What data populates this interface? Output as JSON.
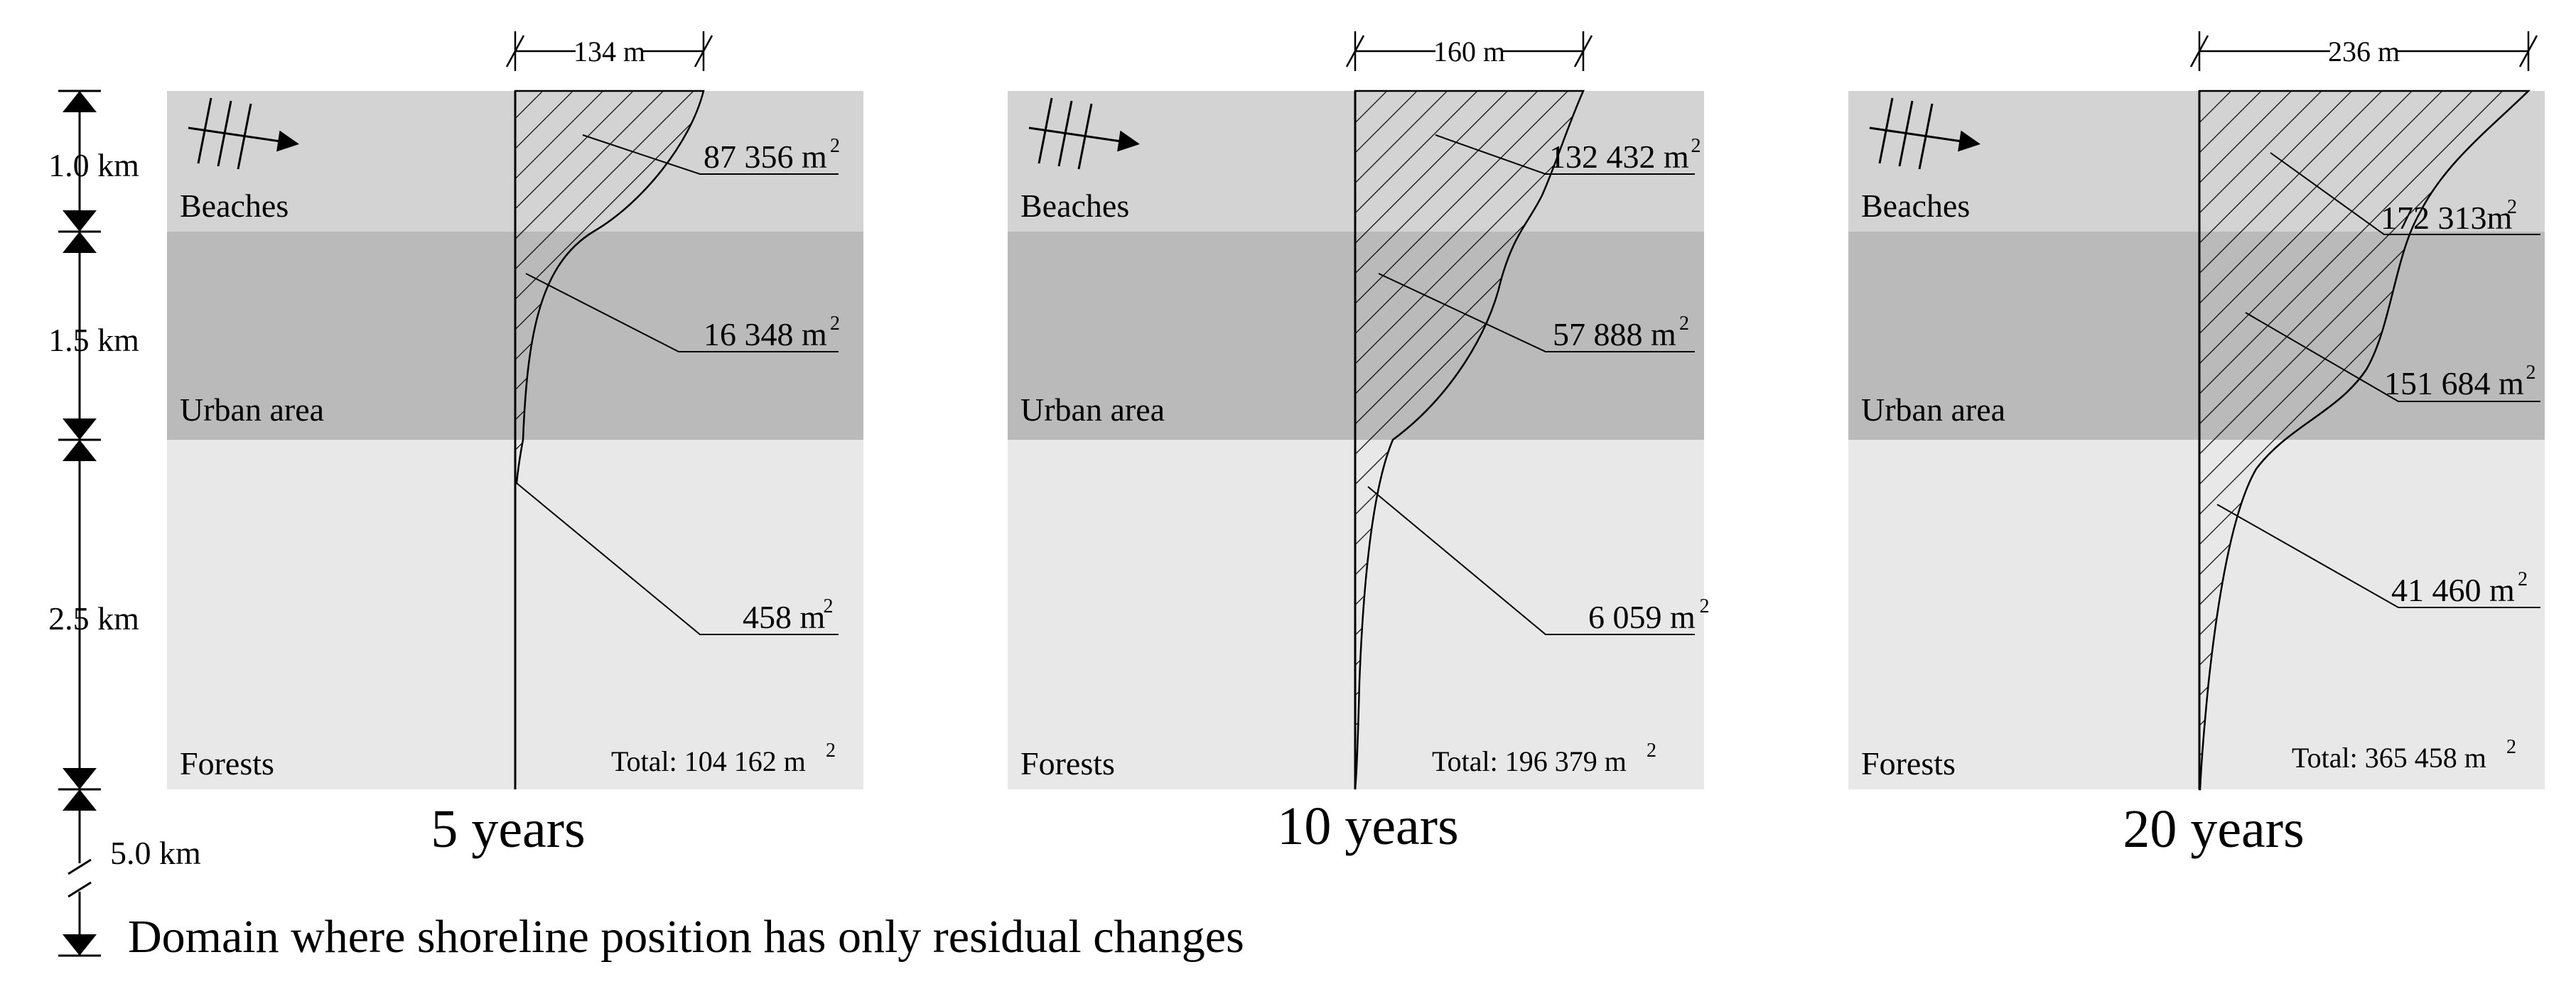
{
  "colors": {
    "beaches": "#d3d3d3",
    "urban": "#bababa",
    "forests": "#e8e8e8",
    "ink": "#000000"
  },
  "axis": {
    "segments": [
      "1.0 km",
      "1.5 km",
      "2.5 km"
    ],
    "tail_label": "5.0 km",
    "caption": "Domain where shoreline position has only residual changes"
  },
  "zones": {
    "beaches": "Beaches",
    "urban": "Urban area",
    "forests": "Forests"
  },
  "unit_exponent": "2",
  "panels": [
    {
      "title": "5 years",
      "width_label": "134 m",
      "areas": [
        "87 356 m",
        "16 348 m",
        "458 m"
      ],
      "total": "Total: 104 162 m"
    },
    {
      "title": "10 years",
      "width_label": "160 m",
      "areas": [
        "132 432 m",
        "57 888 m",
        "6 059 m"
      ],
      "total": "Total: 196 379 m"
    },
    {
      "title": "20 years",
      "width_label": "236 m",
      "areas": [
        "172 313m",
        "151 684 m",
        "41 460 m"
      ],
      "total": "Total: 365 458 m"
    }
  ]
}
